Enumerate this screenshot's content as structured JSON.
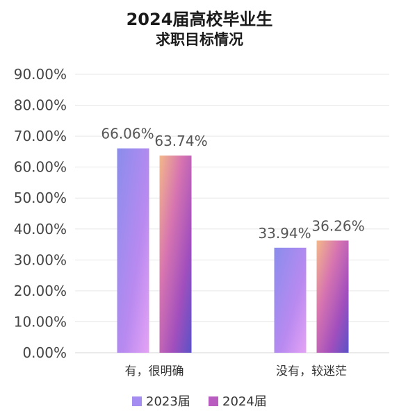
{
  "chart_data": {
    "type": "bar",
    "title": "2024届高校毕业生",
    "subtitle": "求职目标情况",
    "categories": [
      "有，很明确",
      "没有，较迷茫"
    ],
    "series": [
      {
        "name": "2023届",
        "values": [
          66.06,
          33.94
        ],
        "labels": [
          "66.06%",
          "33.94%"
        ]
      },
      {
        "name": "2024届",
        "values": [
          63.74,
          36.26
        ],
        "labels": [
          "63.74%",
          "36.26%"
        ]
      }
    ],
    "xlabel": "",
    "ylabel": "",
    "ylim": [
      0,
      90
    ],
    "yticks": [
      "0.00%",
      "10.00%",
      "20.00%",
      "30.00%",
      "40.00%",
      "50.00%",
      "60.00%",
      "70.00%",
      "80.00%",
      "90.00%"
    ],
    "grid": true,
    "legend": "bottom"
  }
}
